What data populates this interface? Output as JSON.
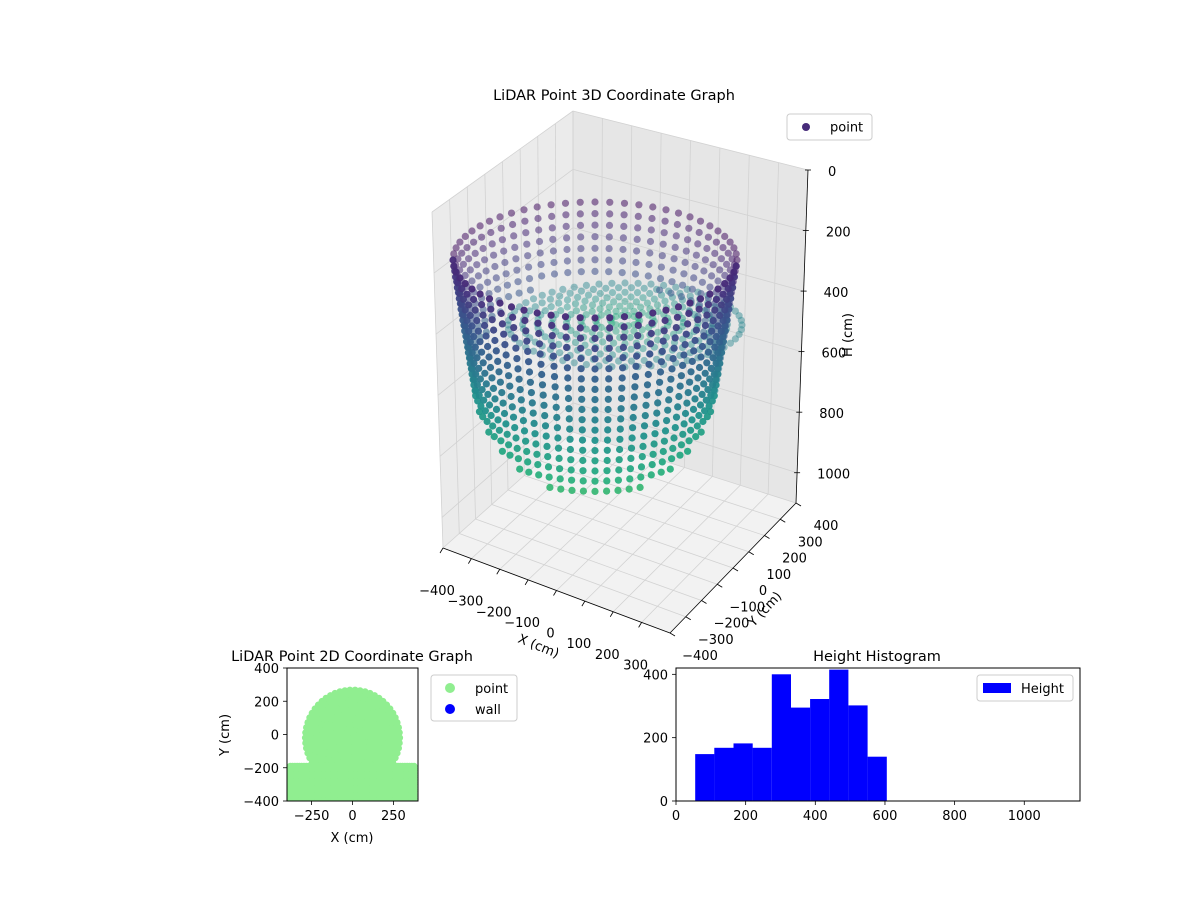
{
  "chart_data": [
    {
      "type": "scatter",
      "title": "LiDAR Point 3D Coordinate Graph",
      "xlabel": "X (cm)",
      "ylabel": "Y (cm)",
      "zlabel": "H (cm)",
      "xlim": [
        -400,
        400
      ],
      "ylim": [
        -400,
        400
      ],
      "zlim": [
        1100,
        0
      ],
      "x_ticks": [
        "−400",
        "−300",
        "−200",
        "−100",
        "0",
        "100",
        "200",
        "300"
      ],
      "y_ticks": [
        "−400",
        "−300",
        "−200",
        "−100",
        "0",
        "100",
        "200",
        "300",
        "400"
      ],
      "z_ticks": [
        "0",
        "200",
        "400",
        "600",
        "800",
        "1000"
      ],
      "grid": true,
      "legend": "top-right",
      "series": [
        {
          "name": "point",
          "color": "#472c7a",
          "colormap": "viridis"
        }
      ]
    },
    {
      "type": "scatter",
      "title": "LiDAR Point 2D Coordinate Graph",
      "xlabel": "X (cm)",
      "ylabel": "Y (cm)",
      "xlim": [
        -400,
        400
      ],
      "ylim": [
        -400,
        400
      ],
      "x_ticks": [
        "−250",
        "0",
        "250"
      ],
      "y_ticks": [
        "400",
        "200",
        "0",
        "−200",
        "−400"
      ],
      "legend": "outside-right",
      "series": [
        {
          "name": "point",
          "color": "#90ee90"
        },
        {
          "name": "wall",
          "color": "#0000ff"
        }
      ]
    },
    {
      "type": "bar",
      "title": "Height Histogram",
      "xlim": [
        0,
        1160
      ],
      "ylim": [
        0,
        420
      ],
      "x_ticks": [
        "0",
        "200",
        "400",
        "600",
        "800",
        "1000"
      ],
      "y_ticks": [
        "0",
        "200",
        "400"
      ],
      "legend": "top-right",
      "series": [
        {
          "name": "Height",
          "color": "#0000ff",
          "bins": [
            55,
            110,
            165,
            220,
            275,
            330,
            385,
            440,
            495,
            550,
            605
          ],
          "values": [
            148,
            168,
            182,
            168,
            400,
            295,
            322,
            415,
            302,
            140
          ]
        }
      ]
    }
  ]
}
